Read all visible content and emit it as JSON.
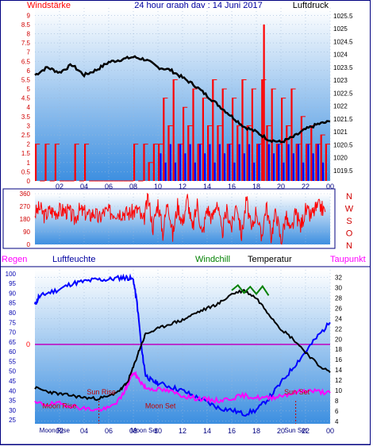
{
  "colors": {
    "wind": "#ff0000",
    "gust": "#0000ff",
    "pressure": "#000000",
    "direction": "#ff0000",
    "temperature": "#000000",
    "windchill": "#008000",
    "dewpoint": "#ff00ff",
    "humidity": "#0000ff",
    "plot_bg_top": "#ffffff",
    "plot_bg_bottom": "#3d8fe0",
    "axis_left_top": "#d00000",
    "axis_left_bottom": "#0000b0",
    "axis_right": "#000000"
  },
  "chart_data": [
    {
      "type": "line",
      "title": "24 hour graph day : 14 Juni 2017",
      "left_label": "Windstärke",
      "right_label": "Luftdruck",
      "x_ticks": [
        "02",
        "04",
        "06",
        "08",
        "10",
        "12",
        "14",
        "16",
        "18",
        "20",
        "22",
        "00"
      ],
      "x_range": [
        0,
        24
      ],
      "left_ticks": [
        "0",
        "0.5",
        "1",
        "1.5",
        "2",
        "2.5",
        "3",
        "3.5",
        "4",
        "4.5",
        "5",
        "5.5",
        "6",
        "6.5",
        "7",
        "7.5",
        "8",
        "8.5",
        "9"
      ],
      "left_range": [
        0,
        9.4
      ],
      "right_ticks": [
        "1019.5",
        "1020",
        "1020.5",
        "1021",
        "1021.5",
        "1022",
        "1022.5",
        "1023",
        "1023.5",
        "1024",
        "1024.5",
        "1025",
        "1025.5"
      ],
      "right_range": [
        1019.1,
        1025.8
      ],
      "series": [
        {
          "key": "pressure",
          "axis": "right",
          "x": [
            0,
            1,
            2,
            3,
            4,
            5,
            6,
            7,
            8,
            9,
            10,
            11,
            12,
            13,
            14,
            15,
            16,
            17,
            18,
            19,
            20,
            21,
            22,
            23,
            24
          ],
          "y": [
            1023.2,
            1023.5,
            1023.3,
            1023.6,
            1023.2,
            1023.4,
            1023.7,
            1023.8,
            1023.9,
            1023.8,
            1023.5,
            1023.4,
            1023.1,
            1022.8,
            1022.4,
            1022.0,
            1021.6,
            1021.2,
            1021.0,
            1020.7,
            1020.6,
            1020.8,
            1021.1,
            1021.3,
            1021.4
          ]
        }
      ],
      "wind_avg": {
        "x": [
          0,
          0.4,
          0.8,
          1.2,
          1.6,
          2,
          2.4,
          2.8,
          3.2,
          3.6,
          4,
          4.4,
          4.8,
          5.2,
          5.6,
          6,
          6.4,
          6.8,
          7.2,
          7.6,
          8,
          8.4,
          8.8,
          9.2,
          9.6,
          10,
          10.4,
          10.8,
          11.2,
          11.6,
          12,
          12.4,
          12.8,
          13.2,
          13.6,
          14,
          14.4,
          14.8,
          15.2,
          15.6,
          16,
          16.4,
          16.8,
          17.2,
          17.6,
          18,
          18.4,
          18.8,
          19.2,
          19.6,
          20,
          20.4,
          20.8,
          21.2,
          21.6,
          22,
          22.4,
          22.8,
          23.2,
          23.6
        ],
        "y": [
          2,
          0,
          2,
          0,
          2,
          0,
          0,
          0,
          2,
          0,
          2,
          0,
          0,
          0,
          0,
          0,
          0,
          0,
          0,
          0,
          2,
          0,
          2,
          1,
          2,
          2,
          4.5,
          3,
          5.5,
          2,
          4,
          3,
          5,
          2,
          4.5,
          3,
          5.5,
          3,
          5,
          2,
          4.5,
          3,
          5.5,
          3,
          5,
          2,
          5.5,
          3,
          5,
          2,
          4.5,
          3,
          5,
          2,
          3.5,
          2,
          3,
          2,
          2.5,
          2
        ]
      },
      "wind_gust": {
        "x": [
          0,
          0.4,
          0.8,
          1.2,
          1.6,
          2,
          2.4,
          2.8,
          3.2,
          3.6,
          4,
          4.4,
          4.8,
          5.2,
          5.6,
          6,
          6.4,
          6.8,
          7.2,
          7.6,
          8,
          8.4,
          8.8,
          9.2,
          9.6,
          10,
          10.4,
          10.8,
          11.2,
          11.6,
          12,
          12.4,
          12.8,
          13.2,
          13.6,
          14,
          14.4,
          14.8,
          15.2,
          15.6,
          16,
          16.4,
          16.8,
          17.2,
          17.6,
          18,
          18.4,
          18.8,
          19.2,
          19.6,
          20,
          20.4,
          20.8,
          21.2,
          21.6,
          22,
          22.4,
          22.8,
          23.2,
          23.6
        ],
        "y": [
          0,
          0,
          0,
          0,
          0,
          0,
          0,
          0,
          0,
          0,
          0,
          0,
          0,
          0,
          0,
          0,
          0,
          0,
          0,
          0,
          0,
          0,
          0,
          0,
          0,
          1.5,
          1,
          2,
          1,
          2,
          1.5,
          2,
          1,
          2,
          1.5,
          2,
          1,
          2,
          1.5,
          2,
          1,
          2,
          1.5,
          2,
          1,
          2,
          8.5,
          2,
          1.5,
          2,
          1,
          2,
          1.5,
          2,
          1,
          2,
          1.5,
          2,
          1,
          0
        ]
      }
    },
    {
      "type": "line",
      "x_ticks": [
        "02",
        "04",
        "06",
        "08",
        "10",
        "12",
        "14",
        "16",
        "18",
        "20",
        "22",
        "00"
      ],
      "x_range": [
        0,
        24
      ],
      "left_ticks": [
        "0",
        "90",
        "180",
        "270",
        "360"
      ],
      "left_range": [
        0,
        360
      ],
      "right_ticks": [
        "N",
        "W",
        "S",
        "O",
        "N"
      ],
      "series": [
        {
          "key": "direction",
          "axis": "left",
          "x": [
            0,
            0.4,
            0.8,
            1.2,
            1.6,
            2,
            2.4,
            2.8,
            3.2,
            3.6,
            4,
            4.4,
            4.8,
            5.2,
            5.6,
            6,
            6.4,
            6.8,
            7.2,
            7.6,
            8,
            8.4,
            8.8,
            9.2,
            9.6,
            10,
            10.4,
            10.8,
            11.2,
            11.6,
            12,
            12.4,
            12.8,
            13.2,
            13.6,
            14,
            14.4,
            14.8,
            15.2,
            15.6,
            16,
            16.4,
            16.8,
            17.2,
            17.6,
            18,
            18.4,
            18.8,
            19.2,
            19.6,
            20,
            20.4,
            20.8,
            21.2,
            21.6,
            22,
            22.4,
            22.8,
            23.2,
            23.6
          ],
          "y": [
            220,
            260,
            200,
            240,
            230,
            240,
            240,
            230,
            180,
            240,
            230,
            200,
            230,
            180,
            230,
            230,
            230,
            230,
            230,
            220,
            230,
            250,
            150,
            330,
            120,
            300,
            80,
            320,
            60,
            280,
            150,
            330,
            100,
            290,
            60,
            260,
            180,
            310,
            70,
            240,
            120,
            300,
            60,
            320,
            90,
            250,
            40,
            280,
            60,
            240,
            20,
            200,
            80,
            220,
            130,
            240,
            200,
            250,
            270,
            230
          ]
        }
      ]
    },
    {
      "type": "line",
      "labels": {
        "rain": "Regen",
        "humidity": "Luftfeuchte",
        "windchill": "Windchill",
        "temperature": "Temperatur",
        "dewpoint": "Taupunkt"
      },
      "x_ticks": [
        "02",
        "04",
        "06",
        "08",
        "10",
        "12",
        "14",
        "16",
        "18",
        "20",
        "22",
        "00"
      ],
      "x_range": [
        0,
        24
      ],
      "left_ticks": [
        "25",
        "30",
        "35",
        "40",
        "45",
        "50",
        "55",
        "60",
        "65",
        "70",
        "75",
        "80",
        "85",
        "90",
        "95",
        "100"
      ],
      "left_range": [
        23,
        102
      ],
      "mid_label": "0",
      "right_ticks": [
        "4",
        "6",
        "8",
        "10",
        "12",
        "14",
        "16",
        "18",
        "20",
        "22",
        "24",
        "26",
        "28",
        "30",
        "32"
      ],
      "right_range": [
        3.5,
        33.5
      ],
      "annotations": [
        {
          "text": "Moon Rise",
          "x": 2.0,
          "y": 31
        },
        {
          "text": "Sun Rise",
          "x": 5.4,
          "y": 38
        },
        {
          "text": "Moon Set",
          "x": 10.2,
          "y": 31
        },
        {
          "text": "Sun Set",
          "x": 21.3,
          "y": 38
        }
      ],
      "marker_labels": [
        {
          "text": "Moon Rise",
          "x": 1.6
        },
        {
          "text": "Moon Set",
          "x": 8.9
        },
        {
          "text": "Sun Set",
          "x": 21.2
        }
      ],
      "series": [
        {
          "key": "temperature",
          "axis": "right",
          "x": [
            0,
            1,
            2,
            3,
            4,
            5,
            6,
            7,
            7.5,
            8,
            8.5,
            9,
            10,
            11,
            12,
            13,
            14,
            15,
            16,
            17,
            18,
            19,
            20,
            21,
            22,
            23,
            24
          ],
          "y": [
            10.5,
            9.8,
            9.3,
            9,
            8.6,
            8.4,
            8.8,
            10.2,
            11.5,
            14.5,
            18,
            21,
            22,
            23,
            23.7,
            25,
            26,
            27,
            28.8,
            29.5,
            28,
            25,
            22,
            20,
            17.5,
            15,
            13.5
          ]
        },
        {
          "key": "windchill",
          "axis": "right",
          "x": [
            16,
            16.5,
            17,
            17.5,
            18,
            18.5,
            19
          ],
          "y": [
            29.5,
            30.5,
            29,
            30.2,
            28.8,
            30.3,
            28.5
          ]
        },
        {
          "key": "dewpoint",
          "axis": "right",
          "x": [
            0,
            1,
            2,
            3,
            4,
            5,
            6,
            7,
            7.5,
            8,
            8.5,
            9,
            10,
            11,
            12,
            13,
            14,
            15,
            16,
            17,
            18,
            19,
            20,
            21,
            22,
            23,
            24
          ],
          "y": [
            7.5,
            7.3,
            7.4,
            7.0,
            6.5,
            6.2,
            6.5,
            8.5,
            11,
            13.5,
            12,
            10.5,
            10.2,
            9.8,
            9,
            8.5,
            8.2,
            8,
            8.5,
            9,
            8.6,
            8.5,
            9,
            9.5,
            10,
            9.8,
            9.5
          ]
        },
        {
          "key": "humidity",
          "axis": "left",
          "x": [
            0,
            0.3,
            1,
            2,
            3,
            4,
            5,
            6,
            7,
            7.5,
            8,
            8.3,
            8.7,
            9,
            9.5,
            10,
            11,
            12,
            13,
            14,
            15,
            16,
            17,
            18,
            19,
            20,
            21,
            22,
            23,
            24
          ],
          "y": [
            84,
            88,
            90,
            92,
            95,
            96,
            97,
            97,
            98,
            98,
            97,
            85,
            60,
            48,
            45,
            44,
            42,
            40,
            37,
            34,
            31,
            30,
            28,
            30,
            36,
            44,
            52,
            60,
            68,
            75
          ]
        }
      ]
    }
  ]
}
